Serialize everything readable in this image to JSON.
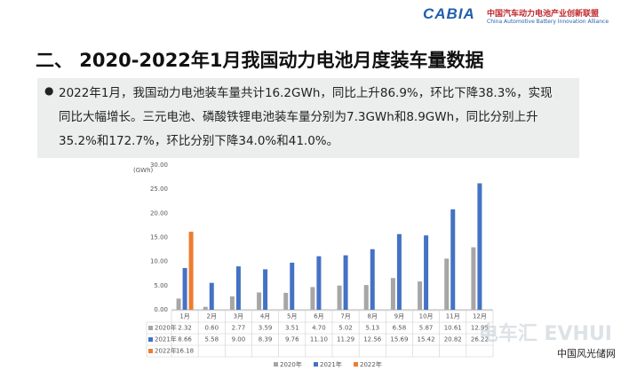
{
  "header": {
    "logo": "CABIA",
    "org_cn": "中国汽车动力电池产业创新联盟",
    "org_en": "China Automotive Battery Innovation Alliance"
  },
  "title": "二、 2020-2022年1月我国动力电池月度装车量数据",
  "bullet_lines": [
    "2022年1月，我国动力电池装车量共计16.2GWh，同比上升86.9%，环比下降38.3%，实现",
    "同比大幅增长。三元电池、磷酸铁锂电池装车量分别为7.3GWh和8.9GWh，同比分别上升",
    "35.2%和172.7%，环比分别下降34.0%和41.0%。"
  ],
  "chart_data": {
    "type": "bar",
    "y_label": "(GWh)",
    "categories": [
      "1月",
      "2月",
      "3月",
      "4月",
      "5月",
      "6月",
      "7月",
      "8月",
      "9月",
      "10月",
      "11月",
      "12月"
    ],
    "series": [
      {
        "name": "2020年",
        "color": "#a6a6a6",
        "values": [
          2.32,
          0.6,
          2.77,
          3.59,
          3.51,
          4.7,
          5.02,
          5.13,
          6.58,
          5.87,
          10.61,
          12.95
        ],
        "value_labels": [
          "2.32",
          "0.60",
          "2.77",
          "3.59",
          "3.51",
          "4.70",
          "5.02",
          "5.13",
          "6.58",
          "5.87",
          "10.61",
          "12.95"
        ]
      },
      {
        "name": "2021年",
        "color": "#4472c4",
        "values": [
          8.66,
          5.58,
          9.0,
          8.39,
          9.76,
          11.1,
          11.29,
          12.56,
          15.69,
          15.42,
          20.82,
          26.22
        ],
        "value_labels": [
          "8.66",
          "5.58",
          "9.00",
          "8.39",
          "9.76",
          "11.10",
          "11.29",
          "12.56",
          "15.69",
          "15.42",
          "20.82",
          "26.22"
        ]
      },
      {
        "name": "2022年",
        "color": "#ed7d31",
        "values": [
          16.18,
          null,
          null,
          null,
          null,
          null,
          null,
          null,
          null,
          null,
          null,
          null
        ],
        "value_labels": [
          "16.18",
          null,
          null,
          null,
          null,
          null,
          null,
          null,
          null,
          null,
          null,
          null
        ]
      }
    ],
    "ylim": [
      0,
      30
    ],
    "yticks": [
      {
        "value": 0,
        "label": "0.00"
      },
      {
        "value": 5,
        "label": "5.00"
      },
      {
        "value": 10,
        "label": "10.00"
      },
      {
        "value": 15,
        "label": "15.00"
      },
      {
        "value": 20,
        "label": "20.00"
      },
      {
        "value": 25,
        "label": "25.00"
      },
      {
        "value": 30,
        "label": "30.00"
      }
    ],
    "grid": false
  },
  "watermark": {
    "brand": "电车汇 EVHUI",
    "site": "中国风光储网"
  }
}
